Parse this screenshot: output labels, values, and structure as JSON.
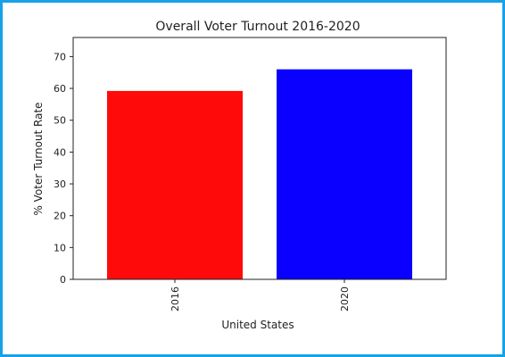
{
  "chart_data": {
    "type": "bar",
    "title": "Overall Voter Turnout 2016-2020",
    "xlabel": "United States",
    "ylabel": "% Voter Turnout Rate",
    "categories": [
      "2016",
      "2020"
    ],
    "values": [
      59.2,
      66.0
    ],
    "colors": [
      "#ff0a0a",
      "#0a00ff"
    ],
    "ylim": [
      0,
      76
    ],
    "yticks": [
      0,
      10,
      20,
      30,
      40,
      50,
      60,
      70
    ],
    "ytick_labels": [
      "0",
      "10",
      "20",
      "30",
      "40",
      "50",
      "60",
      "70"
    ],
    "grid": false,
    "legend": "none"
  },
  "frame_color": "#17a2e8"
}
